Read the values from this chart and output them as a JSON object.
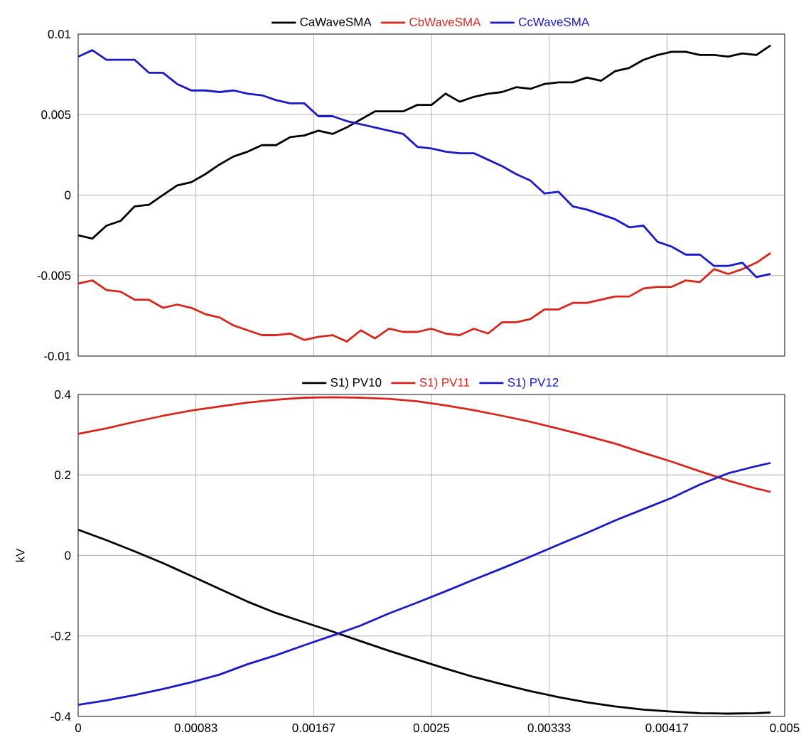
{
  "chart_data": [
    {
      "type": "line",
      "grid": true,
      "legend": "top",
      "marker": "none",
      "line_style": "solid",
      "tick_labels": "y",
      "x": [
        0,
        0.0001,
        0.0002,
        0.0003,
        0.0004,
        0.0005,
        0.0006,
        0.0007,
        0.0008,
        0.0009,
        0.001,
        0.0011,
        0.0012,
        0.0013,
        0.0014,
        0.0015,
        0.0016,
        0.0017,
        0.0018,
        0.0019,
        0.002,
        0.0021,
        0.0022,
        0.0023,
        0.0024,
        0.0025,
        0.0026,
        0.0027,
        0.0028,
        0.0029,
        0.003,
        0.0031,
        0.0032,
        0.0033,
        0.0034,
        0.0035,
        0.0036,
        0.0037,
        0.0038,
        0.0039,
        0.004,
        0.0041,
        0.0042,
        0.0043,
        0.0044,
        0.0045,
        0.0046,
        0.0047,
        0.0048,
        0.0049
      ],
      "xlim": [
        0,
        0.005
      ],
      "xticks": [
        {
          "value": 0,
          "label": null
        },
        {
          "value": 0.000833,
          "label": null
        },
        {
          "value": 0.001667,
          "label": null
        },
        {
          "value": 0.0025,
          "label": null
        },
        {
          "value": 0.003333,
          "label": null
        },
        {
          "value": 0.004167,
          "label": null
        },
        {
          "value": 0.005,
          "label": null
        }
      ],
      "ylim": [
        -0.01,
        0.01
      ],
      "yticks": [
        -0.01,
        -0.005,
        0,
        0.005,
        0.01
      ],
      "series": [
        {
          "name": "CaWaveSMA",
          "color": "#000000",
          "values": [
            -0.0025,
            -0.0027,
            -0.0019,
            -0.0016,
            -0.0007,
            -0.0006,
            0.0,
            0.0006,
            0.0008,
            0.0013,
            0.0019,
            0.0024,
            0.0027,
            0.0031,
            0.0031,
            0.0036,
            0.0037,
            0.004,
            0.0038,
            0.0042,
            0.0047,
            0.0052,
            0.0052,
            0.0052,
            0.0056,
            0.0056,
            0.0063,
            0.0058,
            0.0061,
            0.0063,
            0.0064,
            0.0067,
            0.0066,
            0.0069,
            0.007,
            0.007,
            0.0073,
            0.0071,
            0.0077,
            0.0079,
            0.0084,
            0.0087,
            0.0089,
            0.0089,
            0.0087,
            0.0087,
            0.0086,
            0.0088,
            0.0087,
            0.0093
          ]
        },
        {
          "name": "CbWaveSMA",
          "color": "#d9261c",
          "values": [
            -0.0055,
            -0.0053,
            -0.0059,
            -0.006,
            -0.0065,
            -0.0065,
            -0.007,
            -0.0068,
            -0.007,
            -0.0074,
            -0.0076,
            -0.0081,
            -0.0084,
            -0.0087,
            -0.0087,
            -0.0086,
            -0.009,
            -0.0088,
            -0.0087,
            -0.0091,
            -0.0084,
            -0.0089,
            -0.0083,
            -0.0085,
            -0.0085,
            -0.0083,
            -0.0086,
            -0.0087,
            -0.0083,
            -0.0086,
            -0.0079,
            -0.0079,
            -0.0077,
            -0.0071,
            -0.0071,
            -0.0067,
            -0.0067,
            -0.0065,
            -0.0063,
            -0.0063,
            -0.0058,
            -0.0057,
            -0.0057,
            -0.0053,
            -0.0054,
            -0.0046,
            -0.0049,
            -0.0046,
            -0.0042,
            -0.0036
          ]
        },
        {
          "name": "CcWaveSMA",
          "color": "#1a1ac8",
          "values": [
            0.0086,
            0.009,
            0.0084,
            0.0084,
            0.0084,
            0.0076,
            0.0076,
            0.0069,
            0.0065,
            0.0065,
            0.0064,
            0.0065,
            0.0063,
            0.0062,
            0.0059,
            0.0057,
            0.0057,
            0.0049,
            0.0049,
            0.0046,
            0.0044,
            0.0042,
            0.004,
            0.0038,
            0.003,
            0.0029,
            0.0027,
            0.0026,
            0.0026,
            0.0022,
            0.0018,
            0.0013,
            0.0009,
            0.0001,
            0.0002,
            -0.0007,
            -0.0009,
            -0.0012,
            -0.0015,
            -0.002,
            -0.0019,
            -0.0029,
            -0.0032,
            -0.0037,
            -0.0037,
            -0.0044,
            -0.0044,
            -0.0042,
            -0.0051,
            -0.0049
          ]
        }
      ]
    },
    {
      "type": "line",
      "grid": true,
      "legend": "top",
      "marker": "none",
      "line_style": "solid",
      "ylabel": "kV",
      "x": [
        0,
        0.0002,
        0.0004,
        0.0006,
        0.0008,
        0.001,
        0.0012,
        0.0014,
        0.0016,
        0.0018,
        0.002,
        0.0022,
        0.0024,
        0.0026,
        0.0028,
        0.003,
        0.0032,
        0.0034,
        0.0036,
        0.0038,
        0.004,
        0.0042,
        0.0044,
        0.0046,
        0.0048,
        0.0049
      ],
      "xlim": [
        0,
        0.005
      ],
      "xticks": [
        {
          "value": 0,
          "label": "0"
        },
        {
          "value": 0.000833,
          "label": "0.00083"
        },
        {
          "value": 0.001667,
          "label": "0.00167"
        },
        {
          "value": 0.0025,
          "label": "0.0025"
        },
        {
          "value": 0.003333,
          "label": "0.00333"
        },
        {
          "value": 0.004167,
          "label": "0.00417"
        },
        {
          "value": 0.005,
          "label": "0.005"
        }
      ],
      "ylim": [
        -0.4,
        0.4
      ],
      "yticks": [
        -0.4,
        -0.2,
        0,
        0.2,
        0.4
      ],
      "series": [
        {
          "name": "S1) PV10",
          "color": "#000000",
          "values": [
            0.064,
            0.038,
            0.01,
            -0.019,
            -0.051,
            -0.083,
            -0.115,
            -0.143,
            -0.166,
            -0.189,
            -0.213,
            -0.237,
            -0.259,
            -0.281,
            -0.302,
            -0.32,
            -0.337,
            -0.352,
            -0.365,
            -0.375,
            -0.383,
            -0.388,
            -0.392,
            -0.393,
            -0.392,
            -0.39
          ]
        },
        {
          "name": "S1) PV11",
          "color": "#d9261c",
          "values": [
            0.302,
            0.316,
            0.332,
            0.347,
            0.36,
            0.37,
            0.38,
            0.387,
            0.392,
            0.393,
            0.392,
            0.389,
            0.383,
            0.373,
            0.361,
            0.347,
            0.332,
            0.315,
            0.297,
            0.278,
            0.255,
            0.233,
            0.209,
            0.186,
            0.166,
            0.158
          ]
        },
        {
          "name": "S1) PV12",
          "color": "#1a1ac8",
          "values": [
            -0.371,
            -0.36,
            -0.347,
            -0.332,
            -0.315,
            -0.296,
            -0.27,
            -0.248,
            -0.223,
            -0.199,
            -0.174,
            -0.144,
            -0.117,
            -0.089,
            -0.06,
            -0.032,
            -0.003,
            0.027,
            0.056,
            0.087,
            0.115,
            0.143,
            0.176,
            0.204,
            0.222,
            0.23
          ]
        }
      ]
    }
  ]
}
